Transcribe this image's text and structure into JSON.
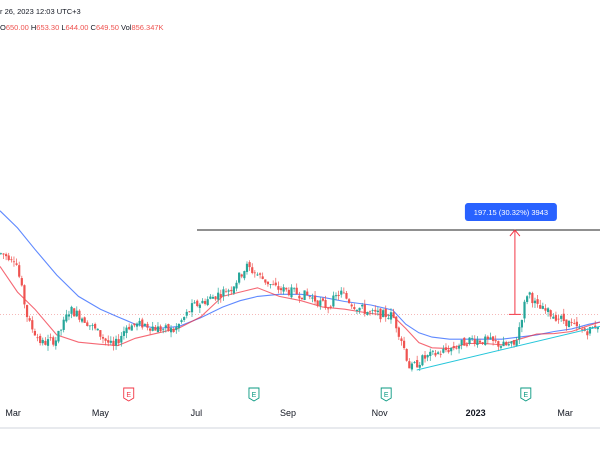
{
  "header": {
    "date_text": "r 26, 2023 12:03 UTC+3",
    "ohlc": [
      {
        "label": "O",
        "value": "650.00"
      },
      {
        "label": "H",
        "value": "653.30"
      },
      {
        "label": "L",
        "value": "644.00"
      },
      {
        "label": "C",
        "value": "649.50"
      },
      {
        "label": "Vol",
        "value": "856.347K"
      }
    ]
  },
  "colors": {
    "up": "#26a69a",
    "down": "#ef5350",
    "ma_fast": "#f23645",
    "ma_slow": "#2962ff",
    "trendline": "#26c6da",
    "resistance": "#222222",
    "measure": "#f23645",
    "label_bg": "#2962ff",
    "label_text": "#ffffff",
    "axis_text": "#131722",
    "grid_h": "#f2a0a0"
  },
  "measure_label": "197.15 (30.32%) 3943",
  "events": [
    {
      "glyph": "E",
      "month_pos": 2.85,
      "color": "#f23645"
    },
    {
      "glyph": "E",
      "month_pos": 5.72,
      "color": "#089981"
    },
    {
      "glyph": "E",
      "month_pos": 8.75,
      "color": "#089981"
    },
    {
      "glyph": "E",
      "month_pos": 11.95,
      "color": "#089981"
    }
  ],
  "chart_data": {
    "type": "candlestick",
    "x_axis": {
      "ticks": [
        {
          "label": "Mar",
          "month_pos": 0.2
        },
        {
          "label": "May",
          "month_pos": 2.2
        },
        {
          "label": "Jul",
          "month_pos": 4.4
        },
        {
          "label": "Sep",
          "month_pos": 6.5
        },
        {
          "label": "Nov",
          "month_pos": 8.6
        },
        {
          "label": "2023",
          "month_pos": 10.8,
          "bold": true
        },
        {
          "label": "Mar",
          "month_pos": 12.85
        }
      ],
      "range": [
        -0.1,
        13.65
      ]
    },
    "y_range": [
      420,
      1000
    ],
    "resistance_level": 845,
    "measure": {
      "from": 648,
      "to": 845,
      "month_pos": 11.7
    },
    "reference_level": 648,
    "trendline": [
      {
        "month_pos": 9.45,
        "value": 518
      },
      {
        "month_pos": 13.65,
        "value": 620
      }
    ],
    "ma_fast": [
      [
        -0.1,
        760
      ],
      [
        0.3,
        700
      ],
      [
        0.7,
        660
      ],
      [
        1.2,
        600
      ],
      [
        1.7,
        583
      ],
      [
        2.2,
        578
      ],
      [
        2.6,
        575
      ],
      [
        3.0,
        592
      ],
      [
        3.5,
        604
      ],
      [
        4.0,
        616
      ],
      [
        4.5,
        642
      ],
      [
        5.0,
        690
      ],
      [
        5.4,
        700
      ],
      [
        5.8,
        710
      ],
      [
        6.3,
        690
      ],
      [
        6.8,
        680
      ],
      [
        7.3,
        665
      ],
      [
        7.8,
        660
      ],
      [
        8.4,
        650
      ],
      [
        8.9,
        645
      ],
      [
        9.2,
        615
      ],
      [
        9.5,
        582
      ],
      [
        9.8,
        570
      ],
      [
        10.2,
        568
      ],
      [
        10.6,
        580
      ],
      [
        11.0,
        580
      ],
      [
        11.4,
        577
      ],
      [
        11.8,
        590
      ],
      [
        12.2,
        602
      ],
      [
        12.6,
        603
      ],
      [
        13.0,
        608
      ],
      [
        13.4,
        622
      ],
      [
        13.65,
        630
      ]
    ],
    "ma_slow": [
      [
        -0.1,
        890
      ],
      [
        0.3,
        850
      ],
      [
        0.7,
        800
      ],
      [
        1.2,
        740
      ],
      [
        1.7,
        690
      ],
      [
        2.2,
        660
      ],
      [
        2.6,
        642
      ],
      [
        3.0,
        625
      ],
      [
        3.5,
        615
      ],
      [
        4.0,
        620
      ],
      [
        4.5,
        640
      ],
      [
        5.0,
        665
      ],
      [
        5.4,
        680
      ],
      [
        5.8,
        690
      ],
      [
        6.3,
        695
      ],
      [
        6.8,
        695
      ],
      [
        7.3,
        688
      ],
      [
        7.8,
        678
      ],
      [
        8.4,
        670
      ],
      [
        8.9,
        658
      ],
      [
        9.2,
        625
      ],
      [
        9.5,
        605
      ],
      [
        9.8,
        595
      ],
      [
        10.2,
        590
      ],
      [
        10.6,
        590
      ],
      [
        11.0,
        590
      ],
      [
        11.4,
        590
      ],
      [
        11.8,
        595
      ],
      [
        12.2,
        600
      ],
      [
        12.6,
        608
      ],
      [
        13.0,
        614
      ],
      [
        13.4,
        625
      ],
      [
        13.65,
        630
      ]
    ],
    "price_anchors": [
      [
        -0.1,
        790
      ],
      [
        0.25,
        780
      ],
      [
        0.55,
        630
      ],
      [
        0.85,
        580
      ],
      [
        1.2,
        590
      ],
      [
        1.5,
        660
      ],
      [
        1.8,
        640
      ],
      [
        2.2,
        600
      ],
      [
        2.5,
        570
      ],
      [
        2.8,
        620
      ],
      [
        3.2,
        625
      ],
      [
        3.5,
        615
      ],
      [
        3.9,
        610
      ],
      [
        4.3,
        665
      ],
      [
        4.8,
        690
      ],
      [
        5.2,
        710
      ],
      [
        5.55,
        760
      ],
      [
        5.75,
        745
      ],
      [
        6.2,
        710
      ],
      [
        6.6,
        700
      ],
      [
        7.0,
        690
      ],
      [
        7.4,
        665
      ],
      [
        7.7,
        700
      ],
      [
        8.0,
        670
      ],
      [
        8.4,
        650
      ],
      [
        8.9,
        645
      ],
      [
        9.1,
        590
      ],
      [
        9.3,
        520
      ],
      [
        9.6,
        545
      ],
      [
        10.0,
        560
      ],
      [
        10.4,
        575
      ],
      [
        10.7,
        590
      ],
      [
        11.1,
        585
      ],
      [
        11.45,
        575
      ],
      [
        11.7,
        575
      ],
      [
        12.0,
        705
      ],
      [
        12.2,
        665
      ],
      [
        12.5,
        650
      ],
      [
        12.9,
        630
      ],
      [
        13.2,
        610
      ],
      [
        13.4,
        610
      ],
      [
        13.65,
        630
      ]
    ]
  }
}
